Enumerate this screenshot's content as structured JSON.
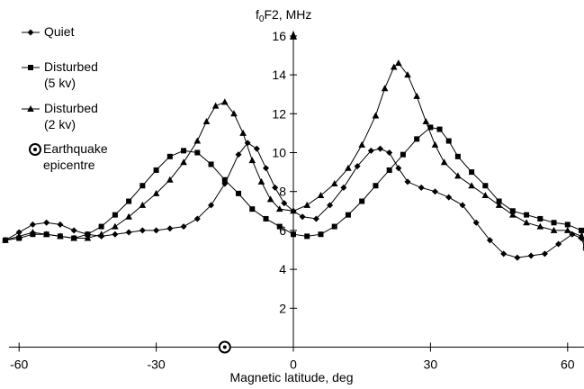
{
  "chart_data": {
    "type": "line",
    "xlabel": "Magnetic latitude, deg",
    "ylabel_main": "f",
    "ylabel_sub": "0",
    "ylabel_rest": "F2, MHz",
    "xlim": [
      -63,
      63
    ],
    "ylim": [
      0,
      16
    ],
    "x_ticks": [
      -60,
      -30,
      0,
      30,
      60
    ],
    "y_ticks": [
      2,
      4,
      6,
      8,
      10,
      12,
      14,
      16
    ],
    "epicentre_x": -15,
    "legend": {
      "placement": "top-left",
      "entries": [
        {
          "series": "quiet",
          "lines": [
            "Quiet"
          ],
          "marker": "diamond"
        },
        {
          "series": "dist5",
          "lines": [
            "Disturbed",
            "(5 kv)"
          ],
          "marker": "square"
        },
        {
          "series": "dist2",
          "lines": [
            "Disturbed",
            "(2 kv)"
          ],
          "marker": "triangle"
        },
        {
          "series": "epicentre",
          "lines": [
            "Earthquake",
            "epicentre"
          ],
          "marker": "target"
        }
      ]
    },
    "series": [
      {
        "name": "Quiet",
        "key": "quiet",
        "marker": "diamond",
        "points": [
          [
            -63,
            5.5
          ],
          [
            -60,
            5.9
          ],
          [
            -57,
            6.3
          ],
          [
            -54,
            6.4
          ],
          [
            -51,
            6.3
          ],
          [
            -48,
            6.0
          ],
          [
            -45,
            5.8
          ],
          [
            -42,
            5.7
          ],
          [
            -39,
            5.8
          ],
          [
            -36,
            5.9
          ],
          [
            -33,
            6.0
          ],
          [
            -30,
            6.0
          ],
          [
            -27,
            6.1
          ],
          [
            -24,
            6.2
          ],
          [
            -21,
            6.6
          ],
          [
            -18,
            7.3
          ],
          [
            -15,
            8.4
          ],
          [
            -12,
            9.9
          ],
          [
            -10,
            10.5
          ],
          [
            -8,
            10.2
          ],
          [
            -6,
            9.2
          ],
          [
            -4,
            8.2
          ],
          [
            -2,
            7.4
          ],
          [
            0,
            7.0
          ],
          [
            2,
            6.7
          ],
          [
            5,
            6.6
          ],
          [
            8,
            7.3
          ],
          [
            11,
            8.2
          ],
          [
            14,
            9.3
          ],
          [
            17,
            10.1
          ],
          [
            19,
            10.2
          ],
          [
            21,
            10.0
          ],
          [
            23,
            9.2
          ],
          [
            25,
            8.5
          ],
          [
            28,
            8.2
          ],
          [
            31,
            8.0
          ],
          [
            34,
            7.7
          ],
          [
            37,
            7.3
          ],
          [
            40,
            6.4
          ],
          [
            43,
            5.5
          ],
          [
            46,
            4.8
          ],
          [
            49,
            4.6
          ],
          [
            52,
            4.7
          ],
          [
            55,
            4.8
          ],
          [
            58,
            5.3
          ],
          [
            61,
            5.8
          ],
          [
            63,
            5.6
          ],
          [
            64,
            5.0
          ]
        ]
      },
      {
        "name": "Disturbed (5 kv)",
        "key": "dist5",
        "marker": "square",
        "points": [
          [
            -63,
            5.5
          ],
          [
            -60,
            5.6
          ],
          [
            -57,
            5.8
          ],
          [
            -54,
            5.8
          ],
          [
            -51,
            5.7
          ],
          [
            -48,
            5.6
          ],
          [
            -45,
            5.8
          ],
          [
            -42,
            6.2
          ],
          [
            -39,
            6.8
          ],
          [
            -36,
            7.5
          ],
          [
            -33,
            8.3
          ],
          [
            -30,
            9.1
          ],
          [
            -27,
            9.8
          ],
          [
            -24,
            10.1
          ],
          [
            -21,
            10.0
          ],
          [
            -18,
            9.4
          ],
          [
            -15,
            8.6
          ],
          [
            -12,
            7.9
          ],
          [
            -9,
            7.1
          ],
          [
            -6,
            6.6
          ],
          [
            -3,
            6.2
          ],
          [
            0,
            5.8
          ],
          [
            3,
            5.7
          ],
          [
            6,
            5.8
          ],
          [
            9,
            6.2
          ],
          [
            12,
            6.8
          ],
          [
            15,
            7.5
          ],
          [
            18,
            8.3
          ],
          [
            21,
            9.1
          ],
          [
            24,
            9.9
          ],
          [
            27,
            10.7
          ],
          [
            30,
            11.3
          ],
          [
            32,
            11.2
          ],
          [
            34,
            10.6
          ],
          [
            36,
            9.8
          ],
          [
            39,
            9.0
          ],
          [
            42,
            8.3
          ],
          [
            45,
            7.5
          ],
          [
            48,
            7.0
          ],
          [
            51,
            6.8
          ],
          [
            54,
            6.6
          ],
          [
            57,
            6.4
          ],
          [
            60,
            6.3
          ],
          [
            63,
            6.0
          ],
          [
            64,
            5.2
          ]
        ]
      },
      {
        "name": "Disturbed (2 kv)",
        "key": "dist2",
        "marker": "triangle",
        "points": [
          [
            -63,
            5.5
          ],
          [
            -60,
            5.7
          ],
          [
            -57,
            5.9
          ],
          [
            -54,
            5.8
          ],
          [
            -51,
            5.7
          ],
          [
            -48,
            5.6
          ],
          [
            -45,
            5.6
          ],
          [
            -42,
            5.8
          ],
          [
            -39,
            6.2
          ],
          [
            -36,
            6.7
          ],
          [
            -33,
            7.3
          ],
          [
            -30,
            7.9
          ],
          [
            -27,
            8.6
          ],
          [
            -24,
            9.5
          ],
          [
            -21,
            10.6
          ],
          [
            -19,
            11.6
          ],
          [
            -17,
            12.4
          ],
          [
            -15,
            12.6
          ],
          [
            -13,
            12.0
          ],
          [
            -11,
            11.0
          ],
          [
            -9,
            9.6
          ],
          [
            -7,
            8.5
          ],
          [
            -5,
            7.6
          ],
          [
            -3,
            7.1
          ],
          [
            0,
            7.0
          ],
          [
            3,
            7.3
          ],
          [
            6,
            7.8
          ],
          [
            9,
            8.4
          ],
          [
            12,
            9.2
          ],
          [
            15,
            10.4
          ],
          [
            18,
            11.9
          ],
          [
            20,
            13.3
          ],
          [
            22,
            14.4
          ],
          [
            23,
            14.6
          ],
          [
            25,
            14.0
          ],
          [
            27,
            12.9
          ],
          [
            29,
            11.6
          ],
          [
            31,
            10.4
          ],
          [
            33,
            9.5
          ],
          [
            36,
            8.8
          ],
          [
            39,
            8.3
          ],
          [
            42,
            7.8
          ],
          [
            45,
            7.3
          ],
          [
            48,
            6.8
          ],
          [
            51,
            6.4
          ],
          [
            54,
            6.2
          ],
          [
            57,
            6.0
          ],
          [
            60,
            6.0
          ],
          [
            63,
            5.7
          ],
          [
            64,
            5.2
          ]
        ]
      }
    ],
    "colors": {
      "axis": "#000000",
      "series": "#000000",
      "background": "#ffffff"
    },
    "grid": false
  }
}
